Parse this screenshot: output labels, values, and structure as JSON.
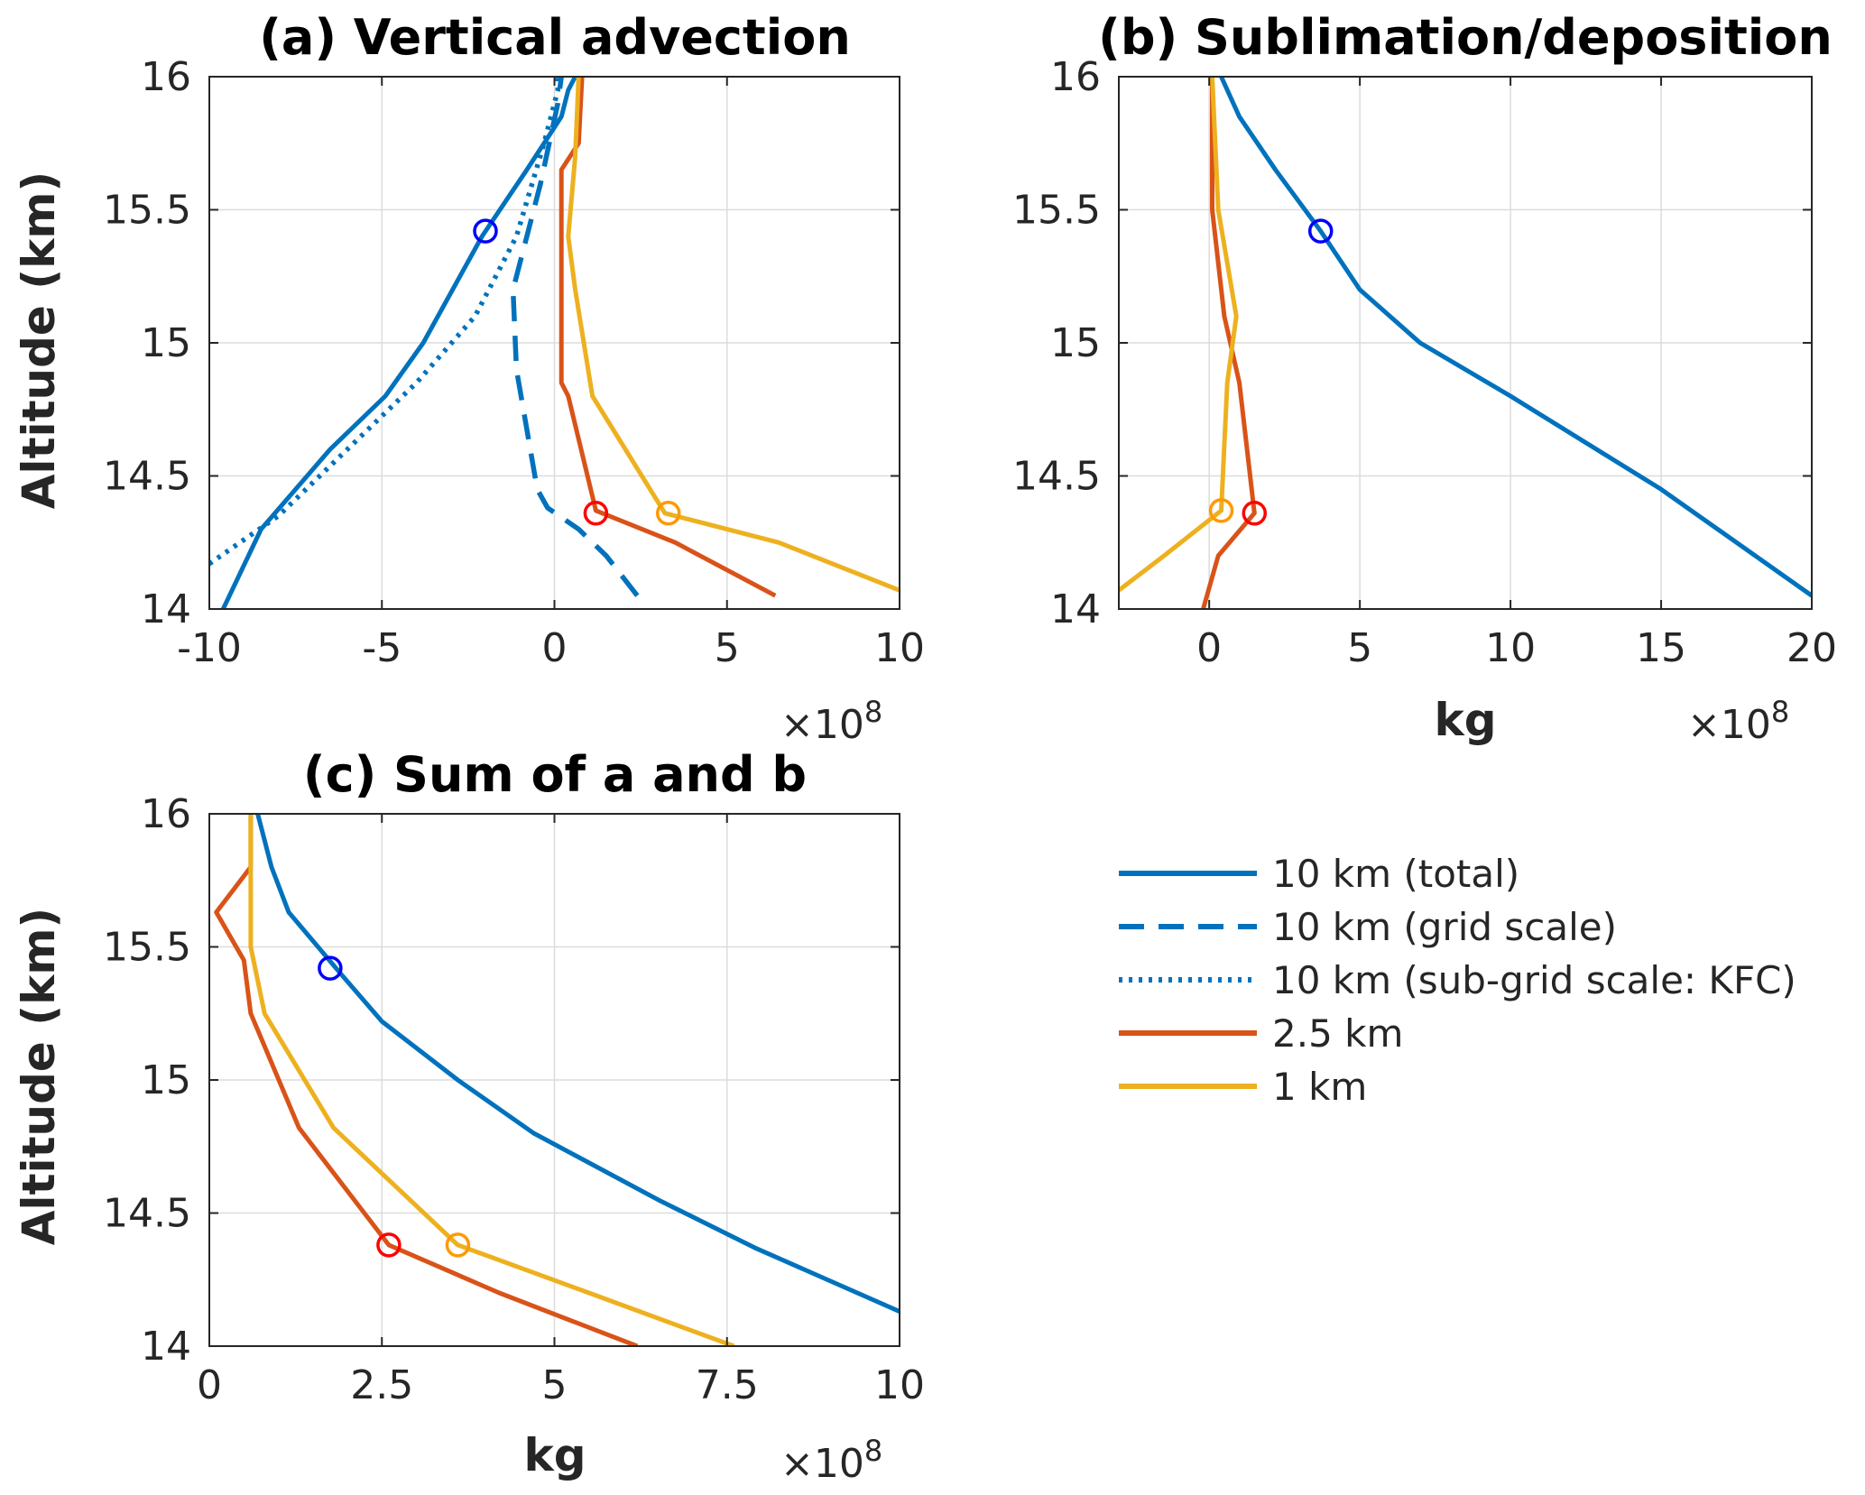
{
  "colors": {
    "blue": "#0072BD",
    "red": "#D95319",
    "yellow": "#EDB120",
    "marker_blue": "#0000ff",
    "marker_red": "#ff0000",
    "marker_orange": "#ff9900"
  },
  "legend": {
    "items": [
      {
        "label": "10 km (total)",
        "color": "#0072BD",
        "dash": "solid"
      },
      {
        "label": "10 km (grid scale)",
        "color": "#0072BD",
        "dash": "dashed"
      },
      {
        "label": "10 km (sub-grid scale: KFC)",
        "color": "#0072BD",
        "dash": "dotted"
      },
      {
        "label": "2.5 km",
        "color": "#D95319",
        "dash": "solid"
      },
      {
        "label": "1 km",
        "color": "#EDB120",
        "dash": "solid"
      }
    ]
  },
  "chart_data": [
    {
      "type": "line",
      "title": "(a) Vertical advection",
      "xlabel": "",
      "ylabel": "Altitude (km)",
      "multiplier": "×10",
      "multiplier_exp": "8",
      "xlim": [
        -10,
        10
      ],
      "ylim": [
        14,
        16
      ],
      "xticks": [
        -10,
        -5,
        0,
        5,
        10
      ],
      "xtick_labels": [
        "-10",
        "-5",
        "0",
        "5",
        "10"
      ],
      "yticks": [
        14,
        14.5,
        15,
        15.5,
        16
      ],
      "ytick_labels": [
        "14",
        "14.5",
        "15",
        "15.5",
        "16"
      ],
      "grid": true,
      "series": [
        {
          "color": "#0072BD",
          "dash": "solid",
          "x": [
            -9.6,
            -8.5,
            -6.5,
            -4.9,
            -3.8,
            -2.1,
            -0.8,
            0.2,
            0.4,
            0.6
          ],
          "y": [
            14.0,
            14.3,
            14.6,
            14.8,
            15.0,
            15.4,
            15.65,
            15.85,
            15.95,
            16.0
          ]
        },
        {
          "color": "#0072BD",
          "dash": "dashed",
          "x": [
            2.4,
            1.5,
            0.7,
            -0.2,
            -0.5,
            -1.1,
            -1.2,
            -1.2,
            -0.4,
            0.1,
            0.2
          ],
          "y": [
            14.05,
            14.2,
            14.3,
            14.38,
            14.45,
            14.9,
            15.2,
            15.2,
            15.6,
            15.9,
            16.0
          ]
        },
        {
          "color": "#0072BD",
          "dash": "dotted",
          "x": [
            -10.0,
            -8.0,
            -6.0,
            -4.0,
            -2.3,
            -1.1,
            -0.3,
            0.1,
            0.1
          ],
          "y": [
            14.17,
            14.35,
            14.6,
            14.85,
            15.1,
            15.4,
            15.75,
            15.95,
            16.0
          ]
        },
        {
          "color": "#D95319",
          "dash": "solid",
          "x": [
            6.4,
            3.5,
            1.2,
            0.4,
            0.2,
            0.2,
            0.2,
            0.7,
            0.8
          ],
          "y": [
            14.05,
            14.25,
            14.37,
            14.8,
            14.85,
            15.2,
            15.65,
            15.75,
            16.0
          ]
        },
        {
          "color": "#EDB120",
          "dash": "solid",
          "x": [
            10.0,
            6.5,
            3.2,
            1.1,
            0.6,
            0.4,
            0.6,
            0.7
          ],
          "y": [
            14.07,
            14.25,
            14.36,
            14.8,
            15.2,
            15.4,
            15.7,
            16.0
          ]
        }
      ],
      "markers": [
        {
          "x": -2.0,
          "y": 15.42,
          "color": "#0000ff"
        },
        {
          "x": 1.2,
          "y": 14.36,
          "color": "#ff0000"
        },
        {
          "x": 3.3,
          "y": 14.36,
          "color": "#ff9900"
        }
      ]
    },
    {
      "type": "line",
      "title": "(b) Sublimation/deposition",
      "xlabel": "kg",
      "ylabel": "",
      "multiplier": "×10",
      "multiplier_exp": "8",
      "xlim": [
        -3,
        20
      ],
      "ylim": [
        14,
        16
      ],
      "xticks": [
        0,
        5,
        10,
        15,
        20
      ],
      "xtick_labels": [
        "0",
        "5",
        "10",
        "15",
        "20"
      ],
      "yticks": [
        14,
        14.5,
        15,
        15.5,
        16
      ],
      "ytick_labels": [
        "14",
        "14.5",
        "15",
        "15.5",
        "16"
      ],
      "grid": true,
      "series": [
        {
          "color": "#0072BD",
          "dash": "solid",
          "x": [
            20.0,
            15.0,
            10.0,
            7.0,
            5.0,
            3.7,
            2.2,
            1.0,
            0.4
          ],
          "y": [
            14.05,
            14.45,
            14.8,
            15.0,
            15.2,
            15.42,
            15.65,
            15.85,
            16.0
          ]
        },
        {
          "color": "#D95319",
          "dash": "solid",
          "x": [
            -0.2,
            0.3,
            1.5,
            1.0,
            0.5,
            0.1,
            0.1
          ],
          "y": [
            14.0,
            14.2,
            14.36,
            14.85,
            15.1,
            15.5,
            16.0
          ]
        },
        {
          "color": "#EDB120",
          "dash": "solid",
          "x": [
            -3.0,
            -1.5,
            0.4,
            0.6,
            0.9,
            0.3,
            0.1
          ],
          "y": [
            14.07,
            14.2,
            14.37,
            14.85,
            15.1,
            15.5,
            16.0
          ]
        }
      ],
      "markers": [
        {
          "x": 3.7,
          "y": 15.42,
          "color": "#0000ff"
        },
        {
          "x": 1.5,
          "y": 14.36,
          "color": "#ff0000"
        },
        {
          "x": 0.4,
          "y": 14.37,
          "color": "#ff9900"
        }
      ]
    },
    {
      "type": "line",
      "title": "(c) Sum of a and b",
      "xlabel": "kg",
      "ylabel": "Altitude (km)",
      "multiplier": "×10",
      "multiplier_exp": "8",
      "xlim": [
        0,
        10
      ],
      "ylim": [
        14,
        16
      ],
      "xticks": [
        0,
        2.5,
        5,
        7.5,
        10
      ],
      "xtick_labels": [
        "0",
        "2.5",
        "5",
        "7.5",
        "10"
      ],
      "yticks": [
        14,
        14.5,
        15,
        15.5,
        16
      ],
      "ytick_labels": [
        "14",
        "14.5",
        "15",
        "15.5",
        "16"
      ],
      "grid": true,
      "series": [
        {
          "color": "#0072BD",
          "dash": "solid",
          "x": [
            10.0,
            7.9,
            6.5,
            4.7,
            3.6,
            2.5,
            1.9,
            1.15,
            0.9,
            0.7
          ],
          "y": [
            14.13,
            14.37,
            14.55,
            14.8,
            15.0,
            15.22,
            15.4,
            15.63,
            15.8,
            16.0
          ]
        },
        {
          "color": "#D95319",
          "dash": "solid",
          "x": [
            6.2,
            4.2,
            2.6,
            1.3,
            0.6,
            0.5,
            0.1,
            0.6,
            0.6
          ],
          "y": [
            14.0,
            14.2,
            14.38,
            14.82,
            15.25,
            15.45,
            15.63,
            15.8,
            16.0
          ]
        },
        {
          "color": "#EDB120",
          "dash": "solid",
          "x": [
            7.6,
            5.5,
            3.6,
            1.8,
            0.8,
            0.6,
            0.6,
            0.6
          ],
          "y": [
            14.0,
            14.2,
            14.38,
            14.82,
            15.25,
            15.5,
            15.8,
            16.0
          ]
        }
      ],
      "markers": [
        {
          "x": 1.75,
          "y": 15.42,
          "color": "#0000ff"
        },
        {
          "x": 2.6,
          "y": 14.38,
          "color": "#ff0000"
        },
        {
          "x": 3.6,
          "y": 14.38,
          "color": "#ff9900"
        }
      ]
    }
  ]
}
